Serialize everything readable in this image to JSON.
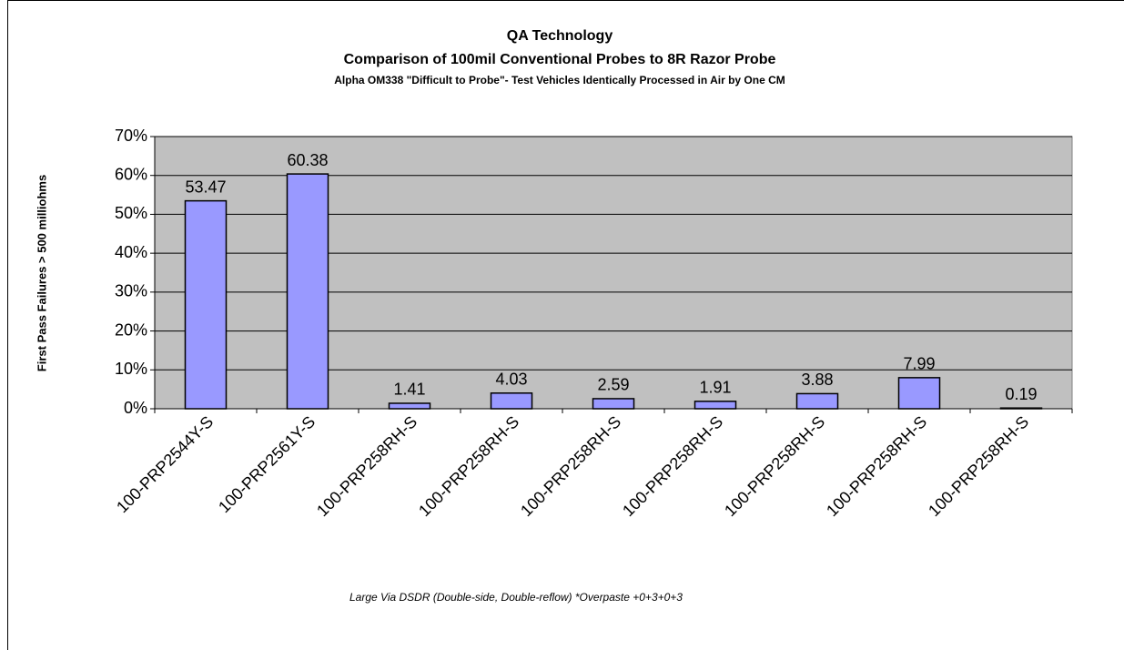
{
  "chart_data": {
    "type": "bar",
    "title": "QA Technology",
    "subtitle": "Comparison of 100mil Conventional Probes to 8R Razor Probe",
    "subtitle2": "Alpha OM338 \"Difficult to Probe\"- Test Vehicles Identically Processed in Air by One CM",
    "y_label": "First Pass Failures > 500 milliohms",
    "note": "Large Via DSDR (Double-side, Double-reflow) *Overpaste +0+3+0+3",
    "categories": [
      "100-PRP2544Y-S",
      "100-PRP2561Y-S",
      "100-PRP258RH-S",
      "100-PRP258RH-S",
      "100-PRP258RH-S",
      "100-PRP258RH-S",
      "100-PRP258RH-S",
      "100-PRP258RH-S",
      "100-PRP258RH-S"
    ],
    "values": [
      53.47,
      60.38,
      1.41,
      4.03,
      2.59,
      1.91,
      3.88,
      7.99,
      0.19
    ],
    "color": "#9999ff",
    "plot_background": "#c0c0c0",
    "ylim": [
      0,
      70
    ],
    "yticks": [
      {
        "value": 0,
        "label": "0%"
      },
      {
        "value": 10,
        "label": "10%"
      },
      {
        "value": 20,
        "label": "20%"
      },
      {
        "value": 30,
        "label": "30%"
      },
      {
        "value": 40,
        "label": "40%"
      },
      {
        "value": 50,
        "label": "50%"
      },
      {
        "value": 60,
        "label": "60%"
      },
      {
        "value": 70,
        "label": "70%"
      }
    ],
    "grid": true
  }
}
